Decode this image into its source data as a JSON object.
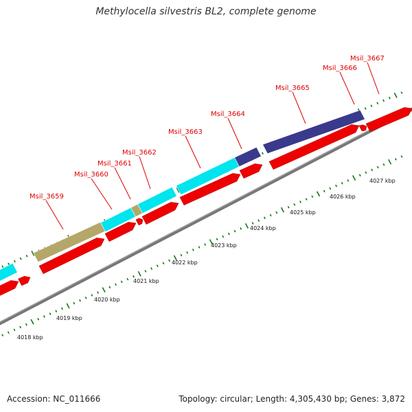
{
  "title": "Methylocella silvestris BL2, complete genome",
  "footer": {
    "accession": "Accession: NC_011666",
    "summary": "Topology: circular; Length: 4,305,430 bp; Genes: 3,872"
  },
  "colors": {
    "label": "#dd0000",
    "cds": "#ee0000",
    "cyan": "#00e5ee",
    "navy": "#3a3a8c",
    "tan": "#b5a66a",
    "tick": "#117711",
    "backbone": "#777777"
  },
  "scale_labels": [
    "4018 kbp",
    "4019 kbp",
    "4020 kbp",
    "4021 kbp",
    "4022 kbp",
    "4023 kbp",
    "4024 kbp",
    "4025 kbp",
    "4026 kbp",
    "4027 kbp"
  ],
  "genes": [
    {
      "label": "Msil_3659"
    },
    {
      "label": "Msil_3660"
    },
    {
      "label": "Msil_3661"
    },
    {
      "label": "Msil_3662"
    },
    {
      "label": "Msil_3663"
    },
    {
      "label": "Msil_3664"
    },
    {
      "label": "Msil_3665"
    },
    {
      "label": "Msil_3666"
    },
    {
      "label": "Msil_3667"
    }
  ]
}
